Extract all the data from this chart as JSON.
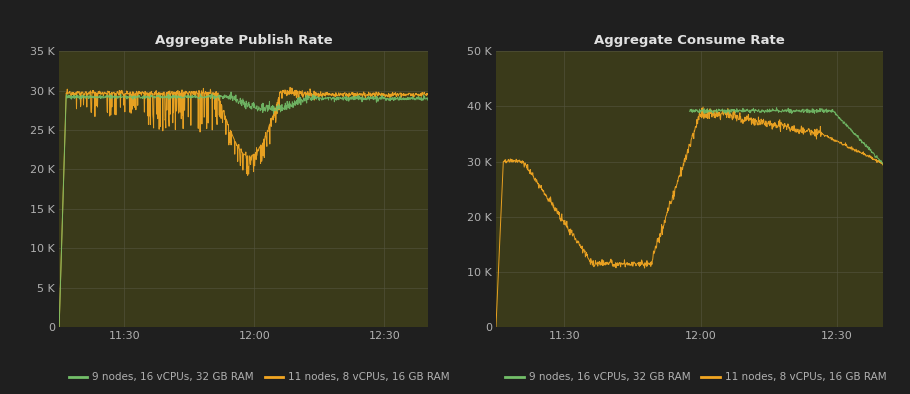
{
  "fig_bg": "#1f1f1f",
  "panel_bg": "#3a3a1a",
  "text_color": "#b0b0b0",
  "title_color": "#e0e0e0",
  "grid_color": "#555540",
  "green_color": "#73bf69",
  "orange_color": "#f2a622",
  "left_title": "Aggregate Publish Rate",
  "right_title": "Aggregate Consume Rate",
  "left_ylim": [
    0,
    35000
  ],
  "left_yticks": [
    0,
    5000,
    10000,
    15000,
    20000,
    25000,
    30000,
    35000
  ],
  "left_ytick_labels": [
    "0",
    "5 K",
    "10 K",
    "15 K",
    "20 K",
    "25 K",
    "30 K",
    "35 K"
  ],
  "right_ylim": [
    0,
    50000
  ],
  "right_yticks": [
    0,
    10000,
    20000,
    30000,
    40000,
    50000
  ],
  "right_ytick_labels": [
    "0",
    "10 K",
    "20 K",
    "30 K",
    "40 K",
    "50 K"
  ],
  "xtick_labels": [
    "11:30",
    "12:00",
    "12:30"
  ],
  "legend_label_green": "9 nodes, 16 vCPUs, 32 GB RAM",
  "legend_label_orange": "11 nodes, 8 vCPUs, 16 GB RAM"
}
